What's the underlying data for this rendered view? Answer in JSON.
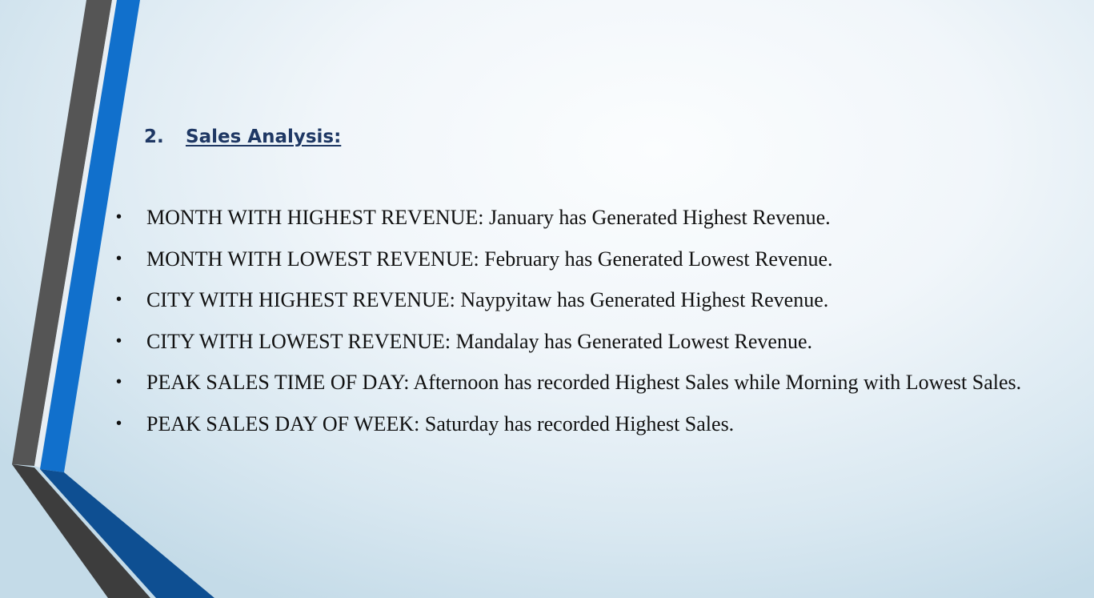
{
  "slide": {
    "heading_number": "2.",
    "heading_text": "Sales Analysis:",
    "bullet_symbol": "•",
    "bullets": [
      "MONTH WITH HIGHEST REVENUE: January has Generated Highest Revenue.",
      "MONTH WITH LOWEST REVENUE: February has Generated Lowest Revenue.",
      "CITY WITH HIGHEST REVENUE: Naypyitaw has Generated Highest Revenue.",
      "CITY WITH LOWEST REVENUE: Mandalay has Generated Lowest Revenue.",
      "PEAK SALES TIME OF DAY: Afternoon has recorded Highest Sales while Morning with Lowest Sales.",
      "PEAK SALES DAY OF WEEK: Saturday has recorded Highest Sales."
    ]
  },
  "theme": {
    "heading_color": "#1f3864",
    "band_gray": "#555555",
    "band_blue": "#1170cc",
    "band_dark_blue": "#0e4f92"
  }
}
